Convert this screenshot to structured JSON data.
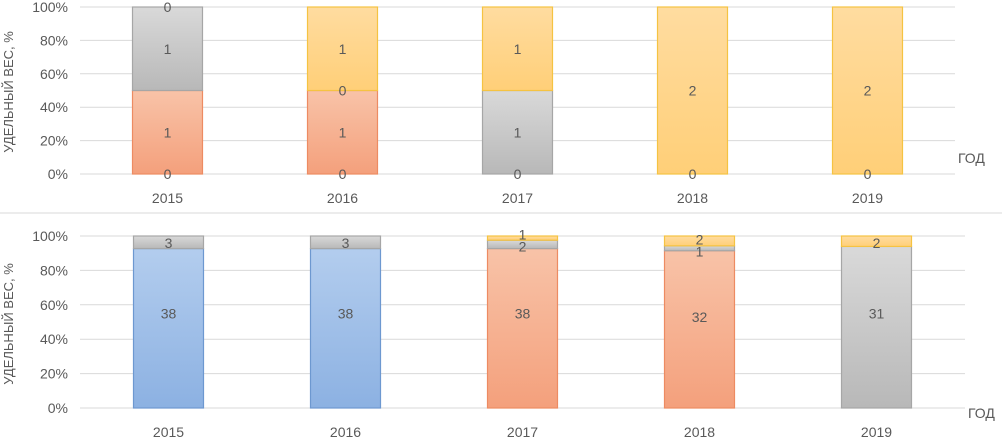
{
  "chart_data": [
    {
      "type": "bar",
      "stacked": "percent",
      "categories": [
        "2015",
        "2016",
        "2017",
        "2018",
        "2019"
      ],
      "ylabel": "УДЕЛЬНЫЙ ВЕС, %",
      "xlabel": "ГОД",
      "ylim": [
        0,
        100
      ],
      "yticks": [
        "0%",
        "20%",
        "40%",
        "60%",
        "80%",
        "100%"
      ],
      "grid": true,
      "series": [
        {
          "color": "#f4a582",
          "values": [
            1,
            1,
            0,
            0,
            0
          ]
        },
        {
          "color": "#bfbfbf",
          "values": [
            1,
            0,
            1,
            0,
            0
          ]
        },
        {
          "color": "#ffd27f",
          "values": [
            0,
            1,
            1,
            2,
            2
          ]
        }
      ],
      "data_labels": [
        {
          "category": "2015",
          "label": "0",
          "value": 0
        },
        {
          "category": "2015",
          "label": "1",
          "value": 25
        },
        {
          "category": "2015",
          "label": "1",
          "value": 75
        },
        {
          "category": "2015",
          "label": "0",
          "value": 100
        },
        {
          "category": "2016",
          "label": "0",
          "value": 0
        },
        {
          "category": "2016",
          "label": "1",
          "value": 25
        },
        {
          "category": "2016",
          "label": "0",
          "value": 50
        },
        {
          "category": "2016",
          "label": "1",
          "value": 75
        },
        {
          "category": "2017",
          "label": "0",
          "value": 0
        },
        {
          "category": "2017",
          "label": "1",
          "value": 25
        },
        {
          "category": "2017",
          "label": "1",
          "value": 75
        },
        {
          "category": "2018",
          "label": "0",
          "value": 0
        },
        {
          "category": "2018",
          "label": "2",
          "value": 50
        },
        {
          "category": "2019",
          "label": "0",
          "value": 0
        },
        {
          "category": "2019",
          "label": "2",
          "value": 50
        }
      ]
    },
    {
      "type": "bar",
      "stacked": "percent",
      "categories": [
        "2015",
        "2016",
        "2017",
        "2018",
        "2019"
      ],
      "ylabel": "УДЕЛЬНЫЙ ВЕС, %",
      "xlabel": "ГОД",
      "ylim": [
        0,
        100
      ],
      "yticks": [
        "0%",
        "20%",
        "40%",
        "60%",
        "80%",
        "100%"
      ],
      "grid": true,
      "series": [
        {
          "color": "#8fb4e3",
          "values": [
            38,
            38,
            0,
            0,
            0
          ]
        },
        {
          "color": "#f4a582",
          "values": [
            0,
            0,
            38,
            32,
            0
          ]
        },
        {
          "color": "#bfbfbf",
          "values": [
            3,
            3,
            2,
            1,
            31
          ]
        },
        {
          "color": "#ffd27f",
          "values": [
            0,
            0,
            1,
            2,
            2
          ]
        }
      ],
      "data_labels": [
        {
          "category": "2015",
          "label": "38",
          "value": 55
        },
        {
          "category": "2015",
          "label": "3",
          "value": 96
        },
        {
          "category": "2016",
          "label": "38",
          "value": 55
        },
        {
          "category": "2016",
          "label": "3",
          "value": 96
        },
        {
          "category": "2017",
          "label": "38",
          "value": 55
        },
        {
          "category": "2017",
          "label": "2",
          "value": 94
        },
        {
          "category": "2017",
          "label": "1",
          "value": 101
        },
        {
          "category": "2018",
          "label": "32",
          "value": 53
        },
        {
          "category": "2018",
          "label": "1",
          "value": 91
        },
        {
          "category": "2018",
          "label": "2",
          "value": 98
        },
        {
          "category": "2019",
          "label": "31",
          "value": 55
        },
        {
          "category": "2019",
          "label": "2",
          "value": 96
        }
      ]
    }
  ]
}
